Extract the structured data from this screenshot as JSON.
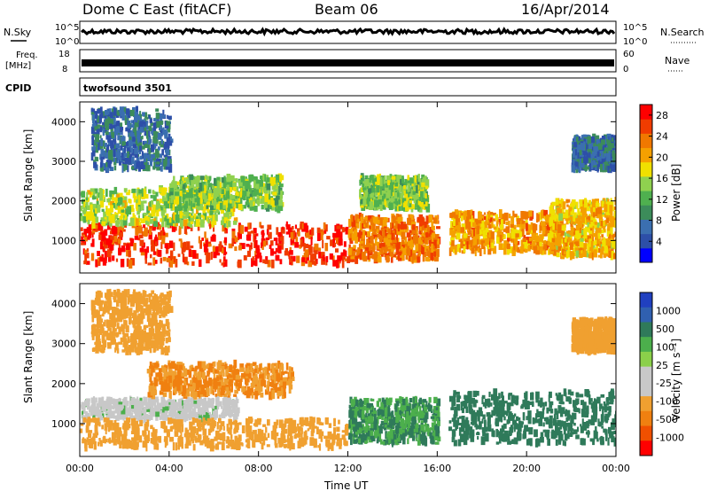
{
  "header": {
    "station": "Dome C East (fitACF)",
    "beam": "Beam 06",
    "date": "16/Apr/2014"
  },
  "strips": {
    "nsky_label": "N.Sky",
    "nsearch_label": "N.Search",
    "freq_label_line1": "Freq.",
    "freq_label_line2": "[MHz]",
    "nave_label": "Nave",
    "cpid_label": "CPID",
    "cpid_value": "twofsound 3501",
    "noise_ticks_left": [
      "10^5",
      "10^0"
    ],
    "noise_ticks_right": [
      "10^5",
      "10^0"
    ],
    "freq_ticks": [
      "18",
      "8"
    ],
    "nave_ticks": [
      "60",
      "0"
    ]
  },
  "colors": {
    "power_scale": [
      "#0000ff",
      "#2d4fa8",
      "#3b6fb0",
      "#3c8c5a",
      "#4fb04f",
      "#8fd14f",
      "#f0e000",
      "#f5a000",
      "#f07800",
      "#f03c00",
      "#ff0000"
    ],
    "velocity_scale": [
      "#2040c0",
      "#3060b0",
      "#2f7a5a",
      "#4caf4c",
      "#8bd04a",
      "#c8c8c8",
      "#c8c8c8",
      "#f0a030",
      "#f08010",
      "#f05000",
      "#ff0000"
    ]
  },
  "chart_data": [
    {
      "type": "heatmap",
      "title": "Power",
      "xlabel": "Time UT",
      "ylabel": "Slant Range [km]",
      "x_ticks": [
        "00:00",
        "04:00",
        "08:00",
        "12:00",
        "16:00",
        "20:00",
        "00:00"
      ],
      "y_ticks": [
        "1000",
        "2000",
        "3000",
        "4000"
      ],
      "ylim": [
        180,
        4500
      ],
      "xlim_hours": [
        0,
        24
      ],
      "colorbar": {
        "label": "Power [dB]",
        "ticks": [
          "4",
          "8",
          "12",
          "16",
          "20",
          "24",
          "28"
        ],
        "range": [
          0,
          30
        ]
      },
      "regions": [
        {
          "t0": 0.0,
          "t1": 12.0,
          "r0": 400,
          "r1": 1400,
          "level": 28
        },
        {
          "t0": 0.0,
          "t1": 7.0,
          "r0": 1400,
          "r1": 2300,
          "level": 16
        },
        {
          "t0": 4.0,
          "t1": 9.0,
          "r0": 1800,
          "r1": 2600,
          "level": 14
        },
        {
          "t0": 0.5,
          "t1": 4.0,
          "r0": 2800,
          "r1": 4300,
          "level": 6
        },
        {
          "t0": 12.0,
          "t1": 16.0,
          "r0": 500,
          "r1": 1600,
          "level": 24
        },
        {
          "t0": 12.5,
          "t1": 15.5,
          "r0": 1800,
          "r1": 2600,
          "level": 14
        },
        {
          "t0": 16.5,
          "t1": 21.5,
          "r0": 700,
          "r1": 1700,
          "level": 22
        },
        {
          "t0": 21.0,
          "t1": 24.0,
          "r0": 600,
          "r1": 2000,
          "level": 20
        },
        {
          "t0": 22.0,
          "t1": 24.0,
          "r0": 2800,
          "r1": 3600,
          "level": 6
        }
      ]
    },
    {
      "type": "heatmap",
      "title": "Velocity",
      "xlabel": "Time UT",
      "ylabel": "Slant Range [km]",
      "x_ticks": [
        "00:00",
        "04:00",
        "08:00",
        "12:00",
        "16:00",
        "20:00",
        "00:00"
      ],
      "y_ticks": [
        "1000",
        "2000",
        "3000",
        "4000"
      ],
      "ylim": [
        180,
        4500
      ],
      "xlim_hours": [
        0,
        24
      ],
      "colorbar": {
        "label": "Velocity [m s⁻¹]",
        "ticks": [
          "1000",
          "500",
          "100",
          "25",
          "-25",
          "-100",
          "-500",
          "-1000"
        ]
      },
      "regions": [
        {
          "t0": 0.0,
          "t1": 7.0,
          "r0": 1100,
          "r1": 1600,
          "level": 0
        },
        {
          "t0": 0.0,
          "t1": 12.0,
          "r0": 400,
          "r1": 1100,
          "level": -200
        },
        {
          "t0": 3.0,
          "t1": 9.5,
          "r0": 1700,
          "r1": 2500,
          "level": -300
        },
        {
          "t0": 0.5,
          "t1": 4.0,
          "r0": 2800,
          "r1": 4300,
          "level": -150
        },
        {
          "t0": 12.0,
          "t1": 16.0,
          "r0": 500,
          "r1": 1600,
          "level": 60
        },
        {
          "t0": 16.5,
          "t1": 24.0,
          "r0": 500,
          "r1": 1800,
          "level": 150
        },
        {
          "t0": 22.0,
          "t1": 24.0,
          "r0": 2800,
          "r1": 3600,
          "level": -100
        }
      ]
    }
  ]
}
